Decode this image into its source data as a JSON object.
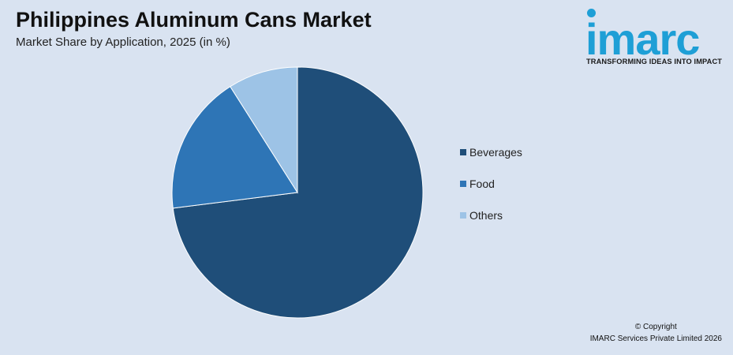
{
  "header": {
    "title": "Philippines Aluminum Cans Market",
    "subtitle": "Market Share by Application, 2025 (in %)"
  },
  "logo": {
    "word": "imarc",
    "tagline": "TRANSFORMING IDEAS INTO IMPACT",
    "color": "#1e9fd6"
  },
  "chart_data": {
    "type": "pie",
    "title": "Philippines Aluminum Cans Market",
    "subtitle": "Market Share by Application, 2025 (in %)",
    "categories": [
      "Beverages",
      "Food",
      "Others"
    ],
    "values": [
      73,
      18,
      9
    ],
    "colors": [
      "#1f4e79",
      "#2e75b6",
      "#9dc3e6"
    ],
    "start": "12 o'clock",
    "direction": "clockwise",
    "legend_placement": "right"
  },
  "footer": {
    "copyright": "© Copyright",
    "company": "IMARC Services Private Limited 2026"
  }
}
